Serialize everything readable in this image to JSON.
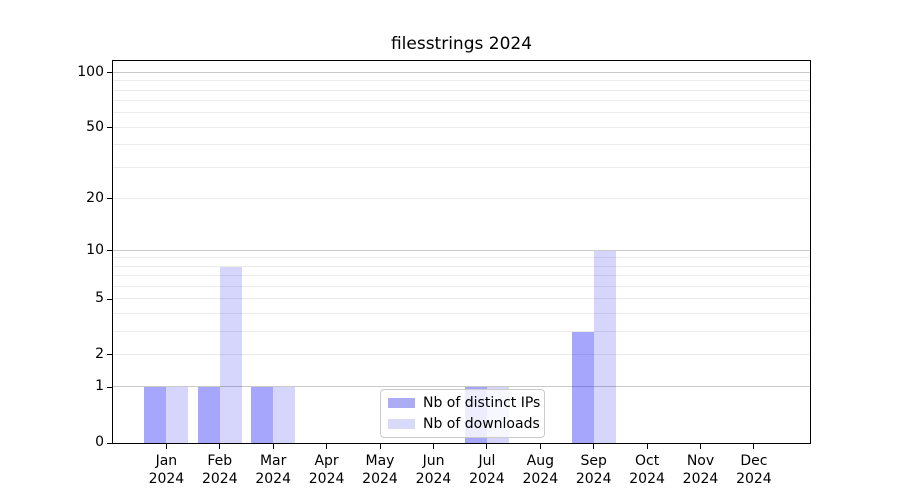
{
  "chart_data": {
    "type": "bar",
    "title": "filesstrings 2024",
    "categories": [
      "Jan",
      "Feb",
      "Mar",
      "Apr",
      "May",
      "Jun",
      "Jul",
      "Aug",
      "Sep",
      "Oct",
      "Nov",
      "Dec"
    ],
    "category_year": "2024",
    "series": [
      {
        "name": "Nb of distinct IPs",
        "color": "rgba(0,0,245,0.35)",
        "swatch": "#acacf4",
        "values": [
          1,
          1,
          1,
          0,
          0,
          0,
          1,
          0,
          3,
          0,
          0,
          0
        ]
      },
      {
        "name": "Nb of downloads",
        "color": "rgba(0,0,245,0.16)",
        "swatch": "#d9d9fa",
        "values": [
          1,
          8,
          1,
          0,
          0,
          0,
          1,
          0,
          10,
          0,
          0,
          0
        ]
      }
    ],
    "y_scale": "log1p",
    "y_ticks": [
      0,
      1,
      2,
      5,
      10,
      20,
      50,
      100
    ],
    "ylim": [
      0,
      115
    ],
    "grid": "horizontal",
    "grid_major": [
      1,
      10,
      100
    ],
    "grid_minor": [
      2,
      3,
      4,
      5,
      6,
      7,
      8,
      9,
      20,
      30,
      40,
      50,
      60,
      70,
      80,
      90
    ],
    "legend_position": "lower center",
    "colors": {
      "spine": "#000000",
      "grid_major": "#c9c9c9",
      "grid_minor": "#ebebeb",
      "legend_border": "#cccccc"
    }
  }
}
